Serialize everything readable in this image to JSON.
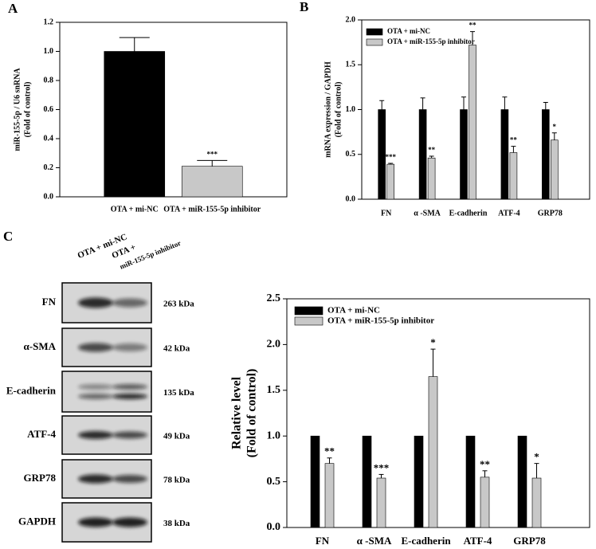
{
  "chart_data": [
    {
      "type": "bar",
      "panel": "A",
      "ylabel": [
        "miR-155-5p / U6 snRNA",
        "(Fold of control)"
      ],
      "categories": [
        "OTA + mi-NC",
        "OTA + miR-155-5p inhibitor"
      ],
      "series": [
        {
          "colors": [
            "#000000",
            "#c8c8c8"
          ],
          "values": [
            1.0,
            0.21
          ],
          "errors": [
            0.095,
            0.04
          ]
        }
      ],
      "annotations": [
        {
          "category": "OTA + miR-155-5p inhibitor",
          "text": "***"
        }
      ],
      "ylim": [
        0,
        1.2
      ],
      "yticks": [
        {
          "value": 0,
          "label": "0.0"
        },
        0.2,
        0.4,
        0.6,
        0.8,
        {
          "value": 1,
          "label": "1.0"
        },
        1.2
      ]
    },
    {
      "type": "bar",
      "panel": "B",
      "ylabel": [
        "mRNA expression / GAPDH",
        "(Fold of control)"
      ],
      "categories": [
        "FN",
        "α -SMA",
        "E-cadherin",
        "ATF-4",
        "GRP78"
      ],
      "series": [
        {
          "name": "OTA + mi-NC",
          "color": "#000000",
          "values": [
            1,
            1,
            1,
            1,
            1
          ],
          "errors": [
            0.1,
            0.13,
            0.14,
            0.14,
            0.08
          ]
        },
        {
          "name": "OTA + miR-155-5p inhibitor",
          "color": "#c8c8c8",
          "values": [
            0.39,
            0.46,
            1.72,
            0.52,
            0.66
          ],
          "errors": [
            0.01,
            0.02,
            0.15,
            0.07,
            0.08
          ]
        }
      ],
      "annotations": [
        {
          "category": "FN",
          "series": "OTA + miR-155-5p inhibitor",
          "text": "***"
        },
        {
          "category": "α -SMA",
          "series": "OTA + miR-155-5p inhibitor",
          "text": "**"
        },
        {
          "category": "E-cadherin",
          "series": "OTA + miR-155-5p inhibitor",
          "text": "**"
        },
        {
          "category": "ATF-4",
          "series": "OTA + miR-155-5p inhibitor",
          "text": "**"
        },
        {
          "category": "GRP78",
          "series": "OTA + miR-155-5p inhibitor",
          "text": "*"
        }
      ],
      "legend": "upper left",
      "ylim": [
        0,
        2
      ],
      "yticks": [
        {
          "value": 0,
          "label": "0.0"
        },
        0.5,
        {
          "value": 1,
          "label": "1.0"
        },
        1.5,
        {
          "value": 2,
          "label": "2.0"
        }
      ]
    },
    {
      "type": "bar",
      "panel": "C",
      "ylabel": [
        "Relative level",
        "(Fold of control)"
      ],
      "categories": [
        "FN",
        "α -SMA",
        "E-cadherin",
        "ATF-4",
        "GRP78"
      ],
      "series": [
        {
          "name": "OTA + mi-NC",
          "color": "#000000",
          "values": [
            1,
            1,
            1,
            1,
            1
          ]
        },
        {
          "name": "OTA + miR-155-5p inhibitor",
          "color": "#c8c8c8",
          "values": [
            0.7,
            0.54,
            1.65,
            0.55,
            0.54
          ],
          "errors": [
            0.06,
            0.04,
            0.3,
            0.07,
            0.16
          ]
        }
      ],
      "annotations": [
        {
          "category": "FN",
          "series": "OTA + miR-155-5p inhibitor",
          "text": "**"
        },
        {
          "category": "α -SMA",
          "series": "OTA + miR-155-5p inhibitor",
          "text": "***"
        },
        {
          "category": "E-cadherin",
          "series": "OTA + miR-155-5p inhibitor",
          "text": "*"
        },
        {
          "category": "ATF-4",
          "series": "OTA + miR-155-5p inhibitor",
          "text": "**"
        },
        {
          "category": "GRP78",
          "series": "OTA + miR-155-5p inhibitor",
          "text": "*"
        }
      ],
      "legend": "upper left",
      "ylim": [
        0,
        2.5
      ],
      "yticks": [
        {
          "value": 0,
          "label": "0.0"
        },
        0.5,
        {
          "value": 1,
          "label": "1.0"
        },
        1.5,
        {
          "value": 2,
          "label": "2.0"
        },
        2.5
      ]
    }
  ],
  "blot": {
    "lanes": [
      [
        "OTA + mi-NC"
      ],
      [
        "OTA +",
        "miR-155-5p inhibitor"
      ]
    ],
    "rows": [
      {
        "protein": "FN",
        "size": "263 kDa"
      },
      {
        "protein": "α-SMA",
        "size": "42 kDa"
      },
      {
        "protein": "E-cadherin",
        "size": "135 kDa"
      },
      {
        "protein": "ATF-4",
        "size": "49 kDa"
      },
      {
        "protein": "GRP78",
        "size": "78 kDa"
      },
      {
        "protein": "GAPDH",
        "size": "38 kDa"
      }
    ]
  }
}
